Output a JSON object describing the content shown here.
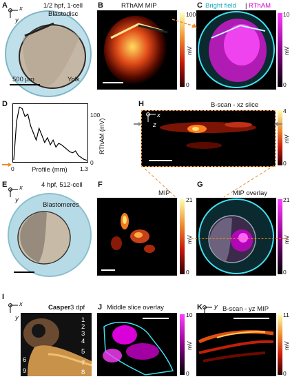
{
  "panels": {
    "A": {
      "letter": "A",
      "title": "1/2 hpf, 1-cell",
      "label_blastodisc": "Blastodisc",
      "label_yolk": "Yolk",
      "scalebar": "500 µm",
      "axis_x": "x",
      "axis_y": "y"
    },
    "B": {
      "letter": "B",
      "title": "RThAM MIP",
      "cb_max": "100",
      "cb_min": "0",
      "cb_unit": "mV"
    },
    "C": {
      "letter": "C",
      "title_a": "Bright field",
      "title_b": "RThAM",
      "cb_max": "10",
      "cb_min": "0",
      "cb_unit": "mV"
    },
    "D": {
      "letter": "D",
      "y_max": "100",
      "y_min": "0",
      "x_min": "0",
      "x_max": "1.3",
      "xlabel": "Profile (mm)",
      "ylabel": "RThAM (mV)"
    },
    "E": {
      "letter": "E",
      "title": "4 hpf, 512-cell",
      "label": "Blastomeres",
      "axis_x": "x",
      "axis_y": "y"
    },
    "F": {
      "letter": "F",
      "title": "MIP",
      "cb_max": "21",
      "cb_min": "0",
      "cb_unit": "mV"
    },
    "G": {
      "letter": "G",
      "title": "MIP overlay",
      "cb_max": "21",
      "cb_min": "0",
      "cb_unit": "mV"
    },
    "H": {
      "letter": "H",
      "title": "B-scan - xz slice",
      "cb_max": "4",
      "cb_min": "0",
      "cb_unit": "mV",
      "axis_x": "x",
      "axis_z": "z"
    },
    "I": {
      "letter": "I",
      "title_bold": "Casper",
      "title_rest": " 3 dpf",
      "axis_x": "x",
      "axis_y": "y",
      "numbers": [
        "1",
        "2",
        "3",
        "4",
        "5",
        "6",
        "7",
        "8",
        "9"
      ]
    },
    "J": {
      "letter": "J",
      "title": "Middle slice overlay",
      "cb_max": "10",
      "cb_min": "0",
      "cb_unit": "mV"
    },
    "K": {
      "letter": "K",
      "title": "B-scan - yz MIP",
      "cb_max": "11",
      "cb_min": "0",
      "cb_unit": "mV",
      "axis_y": "y",
      "axis_z": "z"
    }
  },
  "colors": {
    "hot_top": "#ffffb0",
    "hot_mid": "#e0401a",
    "hot_low": "#3a0000",
    "magenta": "#ff00ff",
    "cyan": "#40e0f0",
    "orange_dash": "#f08a2a"
  },
  "chart_data": {
    "type": "line",
    "xlabel": "Profile (mm)",
    "ylabel": "RThAM (mV)",
    "xlim": [
      0,
      1.3
    ],
    "ylim": [
      0,
      120
    ],
    "x": [
      0,
      0.05,
      0.1,
      0.15,
      0.2,
      0.25,
      0.3,
      0.35,
      0.4,
      0.45,
      0.5,
      0.55,
      0.6,
      0.65,
      0.7,
      0.75,
      0.8,
      0.85,
      0.9,
      0.95,
      1.0,
      1.05,
      1.1,
      1.15,
      1.2,
      1.25,
      1.3
    ],
    "y": [
      3,
      85,
      115,
      112,
      95,
      100,
      75,
      60,
      45,
      70,
      55,
      40,
      50,
      35,
      45,
      30,
      38,
      35,
      30,
      25,
      20,
      18,
      22,
      12,
      8,
      4,
      2
    ]
  }
}
